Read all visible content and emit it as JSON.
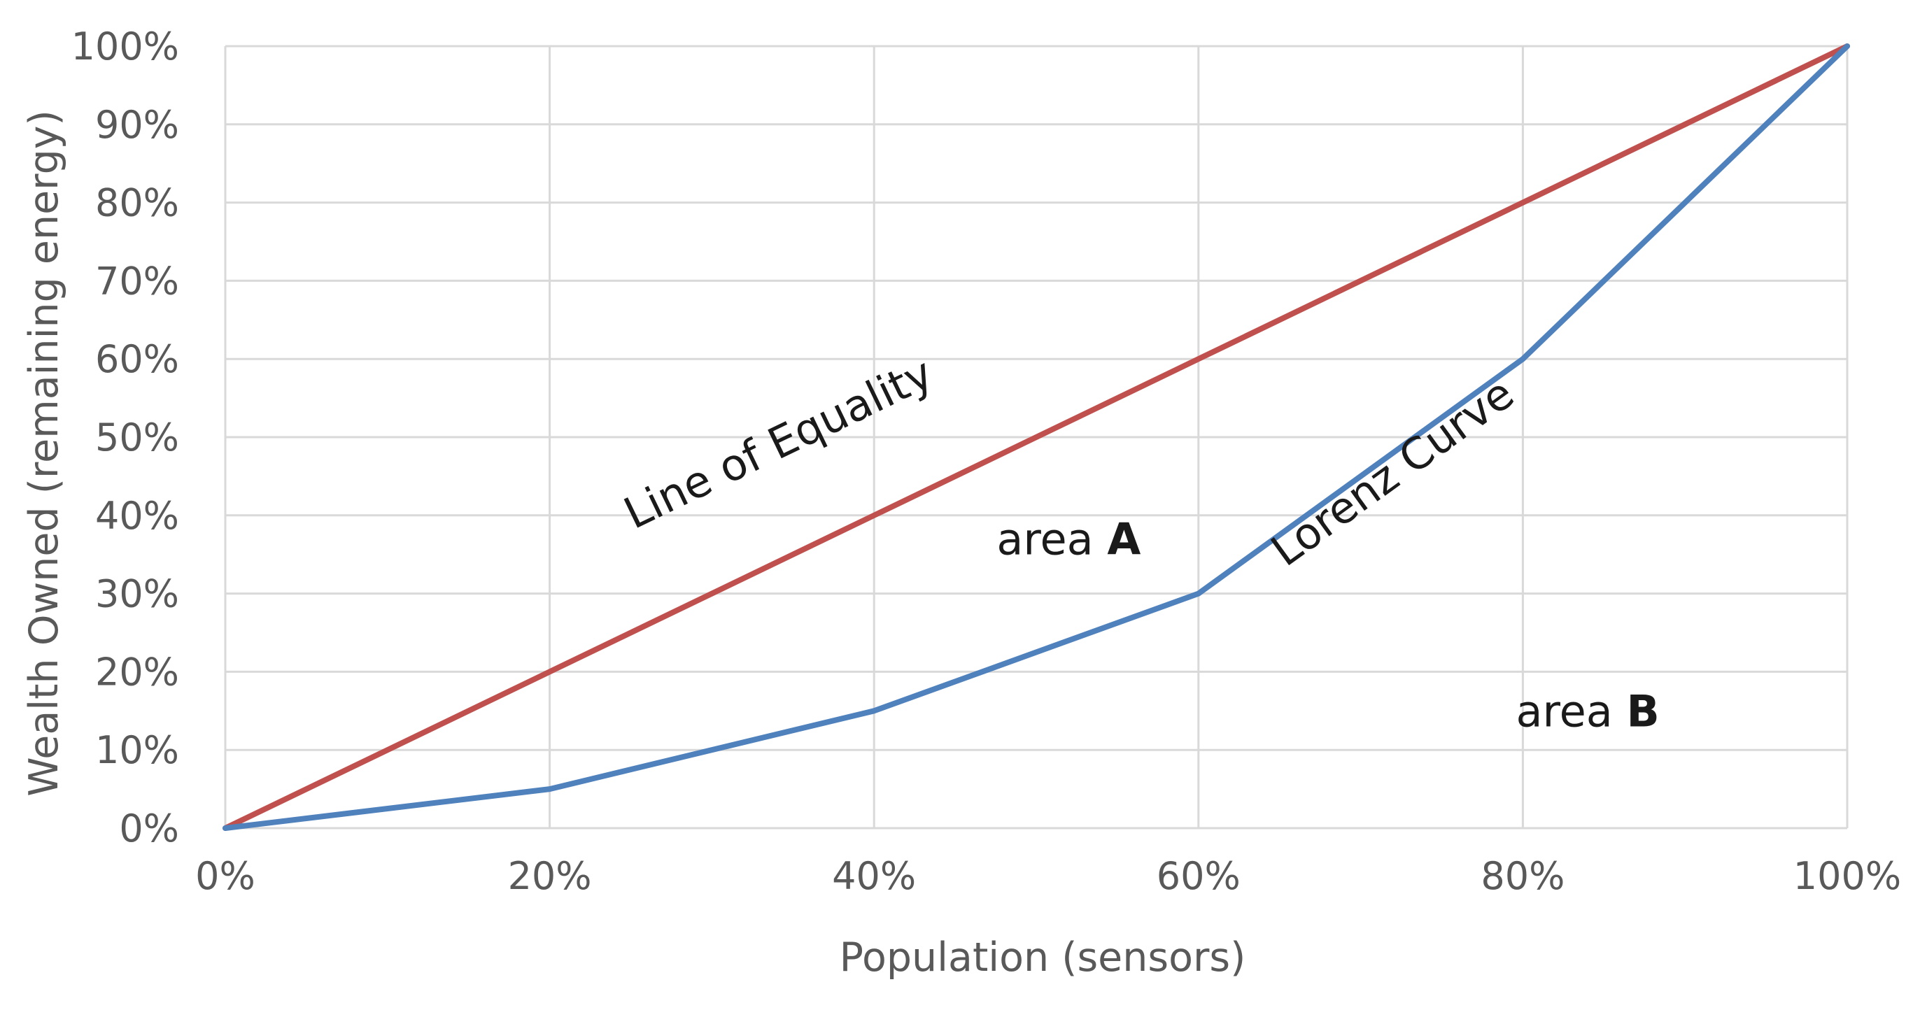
{
  "chart_data": {
    "type": "line",
    "title": "",
    "xlabel": "Population (sensors)",
    "ylabel": "Wealth Owned (remaining energy)",
    "x": [
      0,
      20,
      40,
      60,
      80,
      100
    ],
    "x_tick_labels": [
      "0%",
      "20%",
      "40%",
      "60%",
      "80%",
      "100%"
    ],
    "y_tick_labels": [
      "0%",
      "10%",
      "20%",
      "30%",
      "40%",
      "50%",
      "60%",
      "70%",
      "80%",
      "90%",
      "100%"
    ],
    "xlim": [
      0,
      100
    ],
    "ylim": [
      0,
      100
    ],
    "grid": true,
    "legend": "none",
    "series": [
      {
        "name": "Line of Equality",
        "color": "#c0504d",
        "values": [
          0,
          20,
          40,
          60,
          80,
          100
        ]
      },
      {
        "name": "Lorenz Curve",
        "color": "#4f81bd",
        "values": [
          0,
          5,
          15,
          30,
          60,
          100
        ]
      }
    ],
    "annotations": {
      "area_a": {
        "prefix": "area ",
        "bold": "A",
        "x": 52,
        "y": 35
      },
      "area_b": {
        "prefix": "area ",
        "bold": "B",
        "x": 84,
        "y": 13
      }
    }
  }
}
